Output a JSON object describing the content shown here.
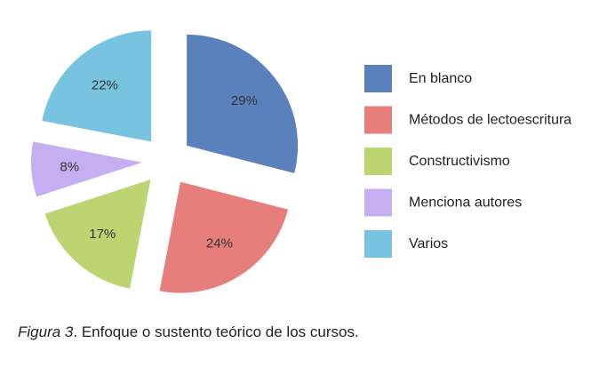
{
  "chart_data": {
    "type": "pie",
    "exploded": true,
    "categories": [
      "En blanco",
      "Métodos de lectoescritura",
      "Constructivismo",
      "Menciona autores",
      "Varios"
    ],
    "values": [
      29,
      24,
      17,
      8,
      22
    ],
    "value_labels": [
      "29%",
      "24%",
      "17%",
      "8%",
      "22%"
    ],
    "colors": [
      "#5b81bd",
      "#e67f7b",
      "#bcd570",
      "#c6aff0",
      "#78c4e0"
    ],
    "start": "12 o'clock",
    "direction": "clockwise",
    "legend_position": "right"
  },
  "caption": {
    "figure_ref": "Figura 3",
    "text": ". Enfoque o sustento teórico de los cursos."
  }
}
